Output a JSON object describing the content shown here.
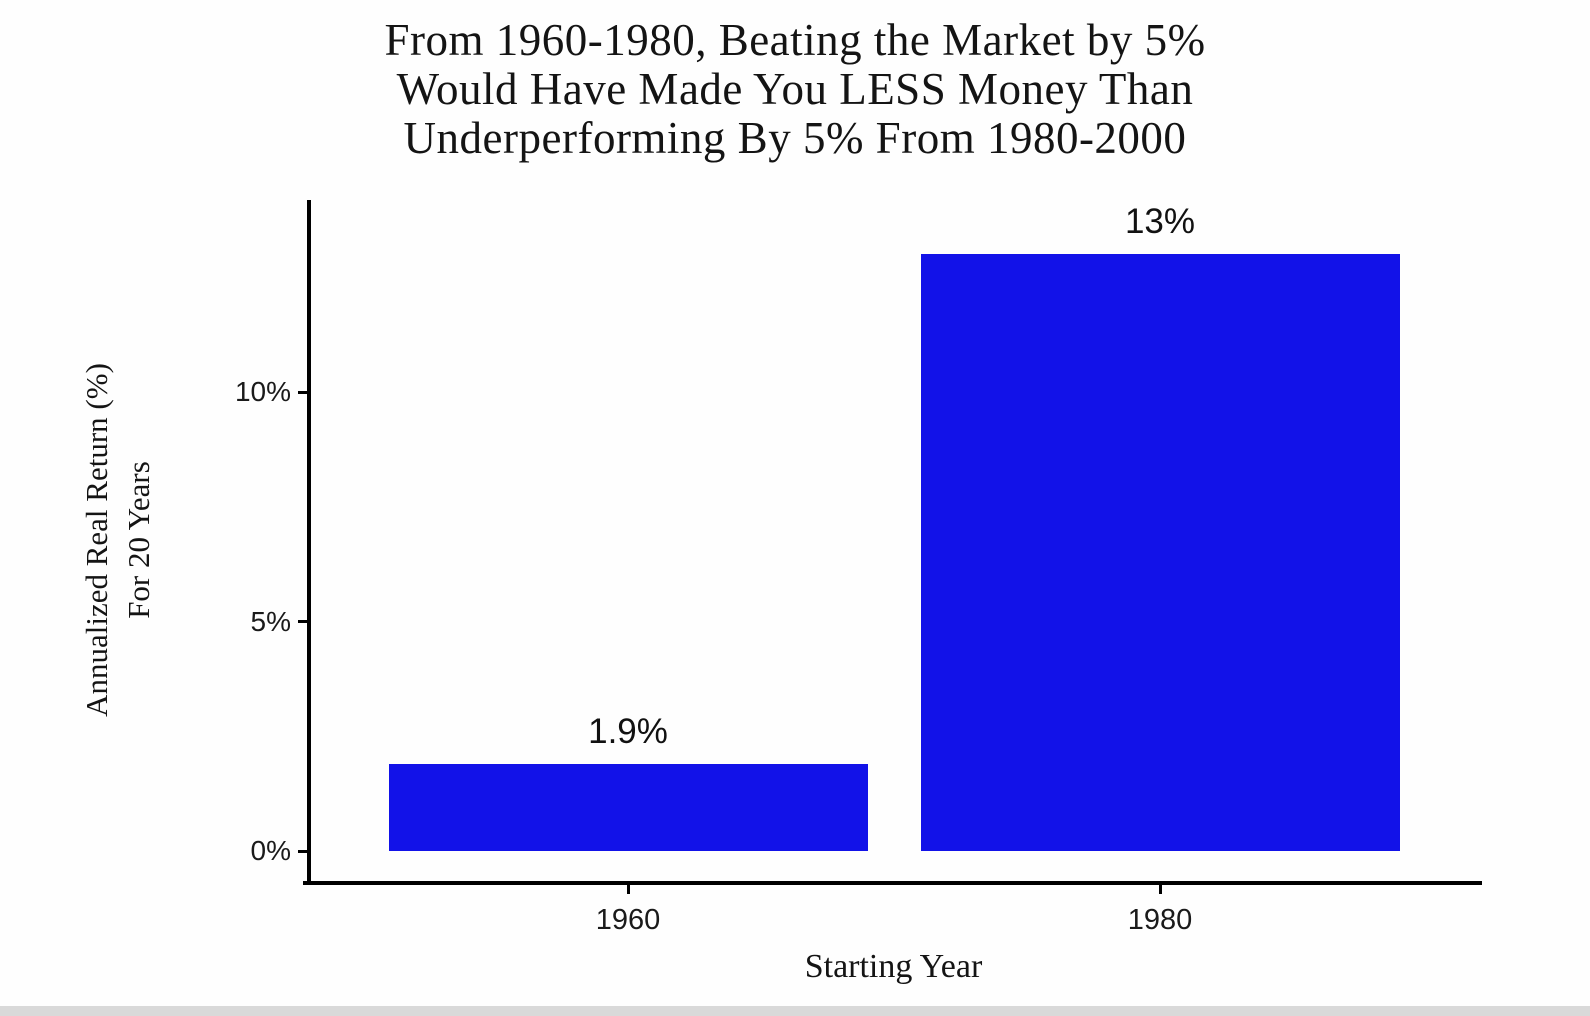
{
  "chart_data": {
    "type": "bar",
    "title": "From 1960-1980, Beating the Market by 5% Would Have Made You LESS Money Than Underperforming By 5% From 1980-2000",
    "title_lines": [
      "From 1960-1980, Beating the Market by 5%",
      "Would Have Made You LESS Money Than",
      "Underperforming By 5% From 1980-2000"
    ],
    "xlabel": "Starting Year",
    "ylabel": "Annualized Real Return (%) For 20 Years",
    "ylabel_lines": [
      "Annualized Real Return (%)",
      "For 20 Years"
    ],
    "categories": [
      "1960",
      "1980"
    ],
    "values": [
      1.9,
      13
    ],
    "bar_labels": [
      "1.9%",
      "13%"
    ],
    "yticks": {
      "values": [
        0,
        5,
        10
      ],
      "labels": [
        "0%",
        "5%",
        "10%"
      ]
    },
    "ylim": [
      0,
      14.2
    ],
    "grid": false,
    "legend": null,
    "colors": {
      "bar": "#1212e8",
      "axis": "#000000",
      "text": "#141414",
      "background": "#fefefe"
    }
  }
}
